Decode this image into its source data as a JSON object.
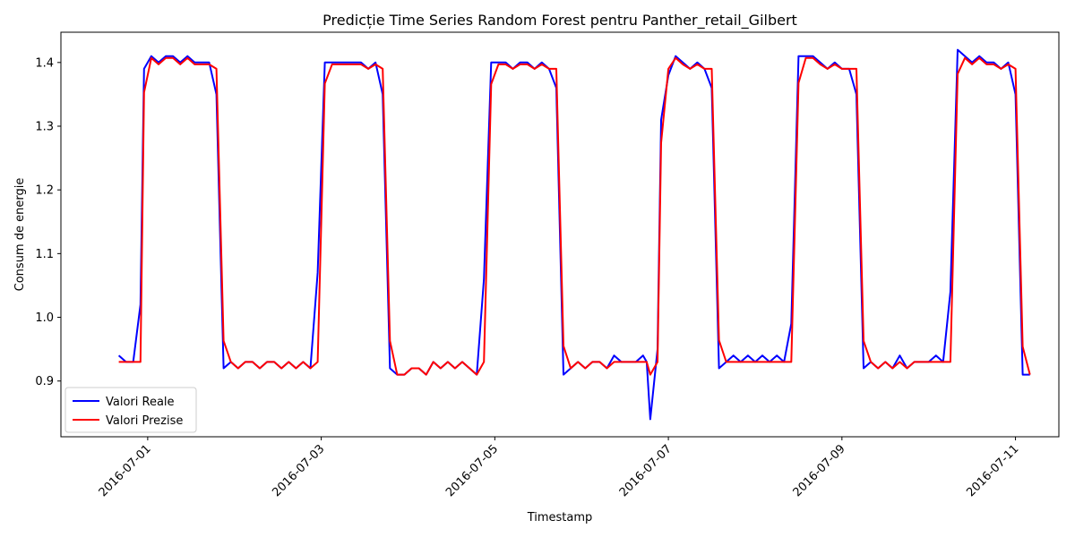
{
  "chart_data": {
    "type": "line",
    "title": "Predicție Time Series Random Forest pentru Panther_retail_Gilbert",
    "xlabel": "Timestamp",
    "ylabel": "Consum de energie",
    "xlim": [
      "2016-06-30T00:00:00",
      "2016-07-11T12:00:00"
    ],
    "ylim": [
      0.8125,
      1.4475
    ],
    "x_ticks": [
      "2016-07-01",
      "2016-07-03",
      "2016-07-05",
      "2016-07-07",
      "2016-07-09",
      "2016-07-11"
    ],
    "y_ticks": [
      "0.9",
      "1.0",
      "1.1",
      "1.2",
      "1.3",
      "1.4"
    ],
    "grid": false,
    "legend_position": "lower-left",
    "series": [
      {
        "name": "Valori Reale",
        "color": "#0000ff",
        "points": [
          [
            "2016-06-30T16:00:00",
            0.94
          ],
          [
            "2016-06-30T18:00:00",
            0.93
          ],
          [
            "2016-06-30T20:00:00",
            0.93
          ],
          [
            "2016-06-30T22:00:00",
            1.02
          ],
          [
            "2016-06-30T23:00:00",
            1.39
          ],
          [
            "2016-07-01T01:00:00",
            1.41
          ],
          [
            "2016-07-01T03:00:00",
            1.4
          ],
          [
            "2016-07-01T05:00:00",
            1.41
          ],
          [
            "2016-07-01T07:00:00",
            1.41
          ],
          [
            "2016-07-01T09:00:00",
            1.4
          ],
          [
            "2016-07-01T11:00:00",
            1.41
          ],
          [
            "2016-07-01T13:00:00",
            1.4
          ],
          [
            "2016-07-01T15:00:00",
            1.4
          ],
          [
            "2016-07-01T17:00:00",
            1.4
          ],
          [
            "2016-07-01T19:00:00",
            1.35
          ],
          [
            "2016-07-01T21:00:00",
            0.92
          ],
          [
            "2016-07-01T23:00:00",
            0.93
          ],
          [
            "2016-07-02T01:00:00",
            0.92
          ],
          [
            "2016-07-02T03:00:00",
            0.93
          ],
          [
            "2016-07-02T05:00:00",
            0.93
          ],
          [
            "2016-07-02T07:00:00",
            0.92
          ],
          [
            "2016-07-02T09:00:00",
            0.93
          ],
          [
            "2016-07-02T11:00:00",
            0.93
          ],
          [
            "2016-07-02T13:00:00",
            0.92
          ],
          [
            "2016-07-02T15:00:00",
            0.93
          ],
          [
            "2016-07-02T17:00:00",
            0.92
          ],
          [
            "2016-07-02T19:00:00",
            0.93
          ],
          [
            "2016-07-02T21:00:00",
            0.92
          ],
          [
            "2016-07-02T23:00:00",
            1.07
          ],
          [
            "2016-07-03T01:00:00",
            1.4
          ],
          [
            "2016-07-03T03:00:00",
            1.4
          ],
          [
            "2016-07-03T05:00:00",
            1.4
          ],
          [
            "2016-07-03T07:00:00",
            1.4
          ],
          [
            "2016-07-03T09:00:00",
            1.4
          ],
          [
            "2016-07-03T11:00:00",
            1.4
          ],
          [
            "2016-07-03T13:00:00",
            1.39
          ],
          [
            "2016-07-03T15:00:00",
            1.4
          ],
          [
            "2016-07-03T17:00:00",
            1.35
          ],
          [
            "2016-07-03T19:00:00",
            0.92
          ],
          [
            "2016-07-03T21:00:00",
            0.91
          ],
          [
            "2016-07-03T23:00:00",
            0.91
          ],
          [
            "2016-07-04T01:00:00",
            0.92
          ],
          [
            "2016-07-04T03:00:00",
            0.92
          ],
          [
            "2016-07-04T05:00:00",
            0.91
          ],
          [
            "2016-07-04T07:00:00",
            0.93
          ],
          [
            "2016-07-04T09:00:00",
            0.92
          ],
          [
            "2016-07-04T11:00:00",
            0.93
          ],
          [
            "2016-07-04T13:00:00",
            0.92
          ],
          [
            "2016-07-04T15:00:00",
            0.93
          ],
          [
            "2016-07-04T17:00:00",
            0.92
          ],
          [
            "2016-07-04T19:00:00",
            0.91
          ],
          [
            "2016-07-04T21:00:00",
            1.06
          ],
          [
            "2016-07-04T23:00:00",
            1.4
          ],
          [
            "2016-07-05T01:00:00",
            1.4
          ],
          [
            "2016-07-05T03:00:00",
            1.4
          ],
          [
            "2016-07-05T05:00:00",
            1.39
          ],
          [
            "2016-07-05T07:00:00",
            1.4
          ],
          [
            "2016-07-05T09:00:00",
            1.4
          ],
          [
            "2016-07-05T11:00:00",
            1.39
          ],
          [
            "2016-07-05T13:00:00",
            1.4
          ],
          [
            "2016-07-05T15:00:00",
            1.39
          ],
          [
            "2016-07-05T17:00:00",
            1.36
          ],
          [
            "2016-07-05T19:00:00",
            0.91
          ],
          [
            "2016-07-05T21:00:00",
            0.92
          ],
          [
            "2016-07-05T23:00:00",
            0.93
          ],
          [
            "2016-07-06T01:00:00",
            0.92
          ],
          [
            "2016-07-06T03:00:00",
            0.93
          ],
          [
            "2016-07-06T05:00:00",
            0.93
          ],
          [
            "2016-07-06T07:00:00",
            0.92
          ],
          [
            "2016-07-06T09:00:00",
            0.94
          ],
          [
            "2016-07-06T11:00:00",
            0.93
          ],
          [
            "2016-07-06T13:00:00",
            0.93
          ],
          [
            "2016-07-06T15:00:00",
            0.93
          ],
          [
            "2016-07-06T17:00:00",
            0.94
          ],
          [
            "2016-07-06T18:00:00",
            0.93
          ],
          [
            "2016-07-06T19:00:00",
            0.84
          ],
          [
            "2016-07-06T21:00:00",
            0.95
          ],
          [
            "2016-07-06T22:00:00",
            1.31
          ],
          [
            "2016-07-07T00:00:00",
            1.38
          ],
          [
            "2016-07-07T02:00:00",
            1.41
          ],
          [
            "2016-07-07T04:00:00",
            1.4
          ],
          [
            "2016-07-07T06:00:00",
            1.39
          ],
          [
            "2016-07-07T08:00:00",
            1.4
          ],
          [
            "2016-07-07T10:00:00",
            1.39
          ],
          [
            "2016-07-07T12:00:00",
            1.36
          ],
          [
            "2016-07-07T14:00:00",
            0.92
          ],
          [
            "2016-07-07T16:00:00",
            0.93
          ],
          [
            "2016-07-07T18:00:00",
            0.94
          ],
          [
            "2016-07-07T20:00:00",
            0.93
          ],
          [
            "2016-07-07T22:00:00",
            0.94
          ],
          [
            "2016-07-08T00:00:00",
            0.93
          ],
          [
            "2016-07-08T02:00:00",
            0.94
          ],
          [
            "2016-07-08T04:00:00",
            0.93
          ],
          [
            "2016-07-08T06:00:00",
            0.94
          ],
          [
            "2016-07-08T08:00:00",
            0.93
          ],
          [
            "2016-07-08T10:00:00",
            0.99
          ],
          [
            "2016-07-08T12:00:00",
            1.41
          ],
          [
            "2016-07-08T14:00:00",
            1.41
          ],
          [
            "2016-07-08T16:00:00",
            1.41
          ],
          [
            "2016-07-08T18:00:00",
            1.4
          ],
          [
            "2016-07-08T20:00:00",
            1.39
          ],
          [
            "2016-07-08T22:00:00",
            1.4
          ],
          [
            "2016-07-09T00:00:00",
            1.39
          ],
          [
            "2016-07-09T02:00:00",
            1.39
          ],
          [
            "2016-07-09T04:00:00",
            1.35
          ],
          [
            "2016-07-09T06:00:00",
            0.92
          ],
          [
            "2016-07-09T08:00:00",
            0.93
          ],
          [
            "2016-07-09T10:00:00",
            0.92
          ],
          [
            "2016-07-09T12:00:00",
            0.93
          ],
          [
            "2016-07-09T14:00:00",
            0.92
          ],
          [
            "2016-07-09T16:00:00",
            0.94
          ],
          [
            "2016-07-09T18:00:00",
            0.92
          ],
          [
            "2016-07-09T20:00:00",
            0.93
          ],
          [
            "2016-07-09T22:00:00",
            0.93
          ],
          [
            "2016-07-10T00:00:00",
            0.93
          ],
          [
            "2016-07-10T02:00:00",
            0.94
          ],
          [
            "2016-07-10T04:00:00",
            0.93
          ],
          [
            "2016-07-10T06:00:00",
            1.04
          ],
          [
            "2016-07-10T08:00:00",
            1.42
          ],
          [
            "2016-07-10T10:00:00",
            1.41
          ],
          [
            "2016-07-10T12:00:00",
            1.4
          ],
          [
            "2016-07-10T14:00:00",
            1.41
          ],
          [
            "2016-07-10T16:00:00",
            1.4
          ],
          [
            "2016-07-10T18:00:00",
            1.4
          ],
          [
            "2016-07-10T20:00:00",
            1.39
          ],
          [
            "2016-07-10T22:00:00",
            1.4
          ],
          [
            "2016-07-11T00:00:00",
            1.35
          ],
          [
            "2016-07-11T02:00:00",
            0.91
          ],
          [
            "2016-07-11T04:00:00",
            0.91
          ]
        ]
      },
      {
        "name": "Valori Prezise",
        "color": "#ff0000",
        "points": []
      }
    ]
  }
}
